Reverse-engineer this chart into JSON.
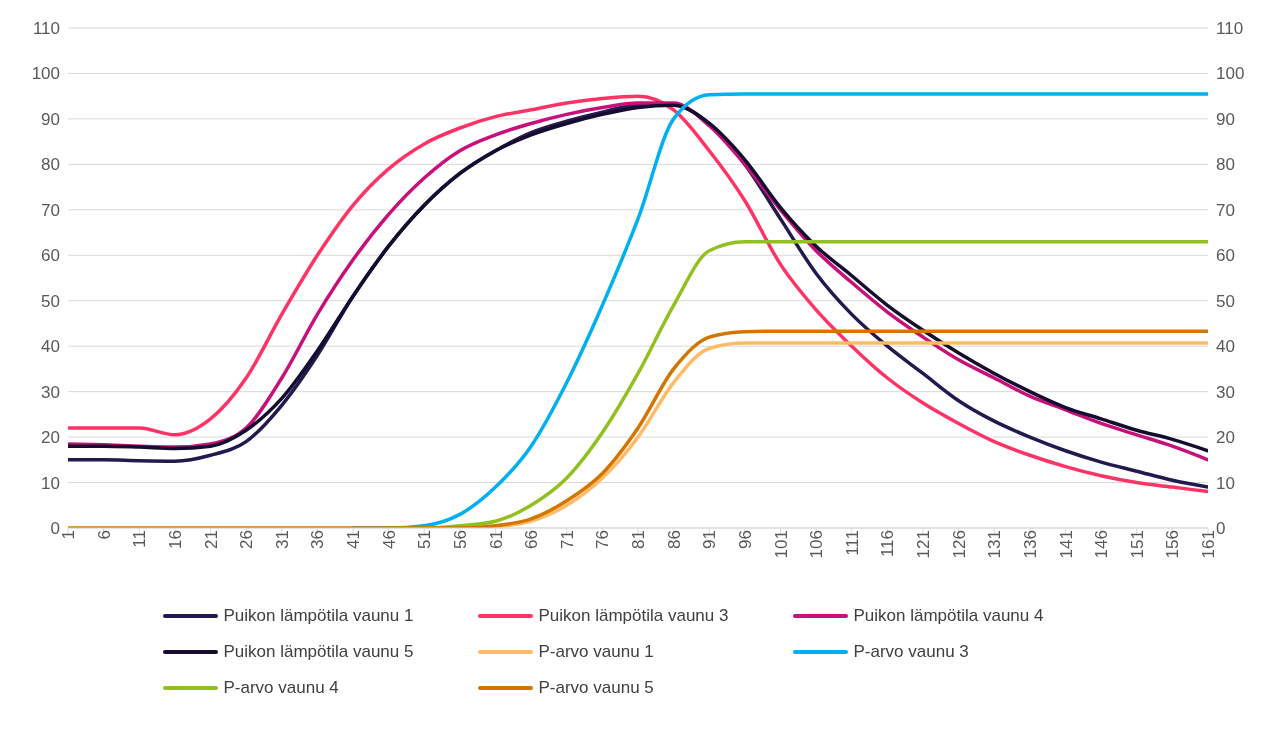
{
  "chart_data": {
    "type": "line",
    "x": [
      1,
      6,
      11,
      16,
      21,
      26,
      31,
      36,
      41,
      46,
      51,
      56,
      61,
      66,
      71,
      76,
      81,
      86,
      91,
      96,
      101,
      106,
      111,
      116,
      121,
      126,
      131,
      136,
      141,
      146,
      151,
      156,
      161
    ],
    "xlim": [
      1,
      161
    ],
    "xticks": [
      1,
      6,
      11,
      16,
      21,
      26,
      31,
      36,
      41,
      46,
      51,
      56,
      61,
      66,
      71,
      76,
      81,
      86,
      91,
      96,
      101,
      106,
      111,
      116,
      121,
      126,
      131,
      136,
      141,
      146,
      151,
      156,
      161
    ],
    "ylim": [
      0,
      110
    ],
    "yticks": [
      0,
      10,
      20,
      30,
      40,
      50,
      60,
      70,
      80,
      90,
      100,
      110
    ],
    "y2lim": [
      0,
      110
    ],
    "y2ticks": [
      0,
      10,
      20,
      30,
      40,
      50,
      60,
      70,
      80,
      90,
      100,
      110
    ],
    "grid": "y",
    "legend": "bottom",
    "marker": "none",
    "line_style": "solid",
    "series": [
      {
        "name": "Puikon lämpötila vaunu 1",
        "color": "#221a4e",
        "values": [
          15,
          15,
          14.8,
          14.7,
          16,
          19,
          27,
          38,
          51,
          62,
          71,
          78,
          83,
          87,
          89.5,
          91.5,
          93,
          93,
          89,
          80,
          68,
          56,
          47,
          40,
          34,
          28,
          23.5,
          20,
          17,
          14.5,
          12.5,
          10.5,
          9
        ]
      },
      {
        "name": "Puikon lämpötila vaunu 3",
        "color": "#ff3366",
        "values": [
          22,
          22,
          22,
          20.5,
          24,
          33,
          47,
          60,
          71,
          79,
          84.5,
          88,
          90.5,
          92,
          93.5,
          94.5,
          95,
          92,
          83,
          72,
          58,
          48,
          40,
          33,
          27.5,
          23,
          19,
          16,
          13.5,
          11.5,
          10,
          9,
          8
        ]
      },
      {
        "name": "Puikon lämpötila vaunu 4",
        "color": "#c8107a",
        "values": [
          18.5,
          18.3,
          18,
          17.8,
          18.5,
          22,
          33,
          47,
          59,
          69,
          77,
          83,
          86.5,
          89,
          91,
          92.5,
          93.5,
          93.5,
          88.5,
          80,
          70,
          61,
          54,
          47.5,
          42,
          37,
          33,
          29,
          26,
          23,
          20.5,
          18,
          15
        ]
      },
      {
        "name": "Puikon lämpötila vaunu 5",
        "color": "#150c30",
        "values": [
          18,
          18,
          17.8,
          17.5,
          18,
          21.5,
          28.5,
          39,
          51,
          62,
          71,
          78,
          83,
          86.5,
          89,
          91,
          92.5,
          93,
          89,
          81,
          70.5,
          62,
          55.5,
          49,
          43.5,
          38.5,
          34,
          30,
          26.5,
          24,
          21.5,
          19.5,
          17
        ]
      },
      {
        "name": "P-arvo vaunu 1",
        "color": "#ffbb66",
        "values": [
          null,
          null,
          null,
          null,
          null,
          null,
          null,
          null,
          null,
          null,
          0,
          0,
          0.3,
          1.5,
          5,
          11,
          20,
          32,
          39.5,
          40.7,
          40.7,
          40.7,
          40.7,
          40.7,
          40.7,
          40.7,
          40.7,
          40.7,
          40.7,
          40.7,
          40.7,
          40.7,
          40.7
        ]
      },
      {
        "name": "P-arvo vaunu 3",
        "color": "#00b0f0",
        "values": [
          null,
          null,
          null,
          null,
          null,
          null,
          null,
          null,
          0,
          0,
          0.5,
          3,
          9,
          18,
          32,
          49,
          68,
          90,
          95.3,
          95.5,
          95.5,
          95.5,
          95.5,
          95.5,
          95.5,
          95.5,
          95.5,
          95.5,
          95.5,
          95.5,
          95.5,
          95.5,
          95.5
        ]
      },
      {
        "name": "P-arvo vaunu 4",
        "color": "#92c020",
        "values": [
          null,
          null,
          null,
          null,
          null,
          null,
          null,
          null,
          null,
          0,
          0,
          0.5,
          1.5,
          5,
          11,
          21,
          34,
          49,
          61,
          63,
          63,
          63,
          63,
          63,
          63,
          63,
          63,
          63,
          63,
          63,
          63,
          63,
          63
        ]
      },
      {
        "name": "P-arvo vaunu 5",
        "color": "#d47500",
        "values": [
          0,
          0,
          0,
          0,
          0,
          0,
          0,
          0,
          0,
          0,
          0,
          0,
          0.5,
          2,
          6,
          12,
          22,
          35,
          42,
          43.2,
          43.3,
          43.3,
          43.3,
          43.3,
          43.3,
          43.3,
          43.3,
          43.3,
          43.3,
          43.3,
          43.3,
          43.3,
          43.3
        ]
      }
    ]
  }
}
